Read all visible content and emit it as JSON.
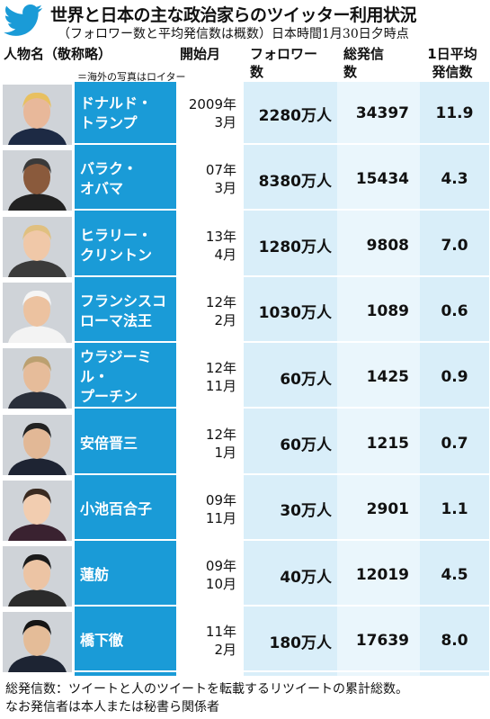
{
  "header": {
    "title": "世界と日本の主な政治家らのツイッター利用状況",
    "subtitle": "（フォロワー数と平均発信数は概数）日本時間1月30日夕時点"
  },
  "columns": {
    "name": "人物名（敬称略）",
    "start": "開始月",
    "followers": "フォロワー\n数",
    "posts": "総発信\n数",
    "avg": "1日平均\n発信数"
  },
  "photo_note": "＝海外の写真はロイター",
  "rows": [
    {
      "name1": "ドナルド・",
      "name2": "トランプ",
      "start1": "2009年",
      "start2": "3月",
      "followers": "2280万人",
      "posts": "34397",
      "avg": "11.9"
    },
    {
      "name1": "バラク・",
      "name2": "オバマ",
      "start1": "07年",
      "start2": "3月",
      "followers": "8380万人",
      "posts": "15434",
      "avg": "4.3"
    },
    {
      "name1": "ヒラリー・",
      "name2": "クリントン",
      "start1": "13年",
      "start2": "4月",
      "followers": "1280万人",
      "posts": "9808",
      "avg": "7.0"
    },
    {
      "name1": "フランシスコ",
      "name2": "ローマ法王",
      "start1": "12年",
      "start2": "2月",
      "followers": "1030万人",
      "posts": "1089",
      "avg": "0.6"
    },
    {
      "name1": "ウラジーミル・",
      "name2": "プーチン",
      "start1": "12年",
      "start2": "11月",
      "followers": "60万人",
      "posts": "1425",
      "avg": "0.9"
    },
    {
      "name1": "安倍晋三",
      "name2": "",
      "start1": "12年",
      "start2": "1月",
      "followers": "60万人",
      "posts": "1215",
      "avg": "0.7"
    },
    {
      "name1": "小池百合子",
      "name2": "",
      "start1": "09年",
      "start2": "11月",
      "followers": "30万人",
      "posts": "2901",
      "avg": "1.1"
    },
    {
      "name1": "蓮舫",
      "name2": "",
      "start1": "09年",
      "start2": "10月",
      "followers": "40万人",
      "posts": "12019",
      "avg": "4.5"
    },
    {
      "name1": "橋下徹",
      "name2": "",
      "start1": "11年",
      "start2": "2月",
      "followers": "180万人",
      "posts": "17639",
      "avg": "8.0"
    }
  ],
  "footnote": {
    "line1": "総発信数：ツイートと人のツイートを転載するリツイートの累計総数。",
    "line2": "なお発信者は本人または秘書ら関係者"
  },
  "colors": {
    "accent": "#1a9bd7",
    "light": "#d9eef9"
  }
}
